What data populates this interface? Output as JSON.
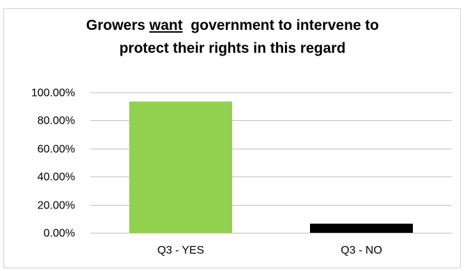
{
  "chart_data": {
    "type": "bar",
    "title": {
      "line1_pre": "Growers ",
      "line1_underlined": "want",
      "line1_post": "  government to intervene to",
      "line2": "protect their rights in this regard"
    },
    "categories": [
      "Q3 - YES",
      "Q3 - NO"
    ],
    "values": [
      93.5,
      6.5
    ],
    "colors": [
      "#92d050",
      "#000000"
    ],
    "ylim": [
      0,
      100
    ],
    "yticks": [
      0,
      20,
      40,
      60,
      80,
      100
    ],
    "ytick_labels": [
      "0.00%",
      "20.00%",
      "40.00%",
      "60.00%",
      "80.00%",
      "100.00%"
    ],
    "grid": true,
    "gridline_color": "#bfbfbf",
    "legend": "none"
  }
}
